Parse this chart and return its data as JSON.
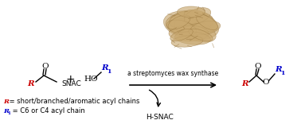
{
  "background_color": "#ffffff",
  "enzyme_label": "a streptomyces wax synthase",
  "byproduct_label": "H-SNAC",
  "R_label_color": "#cc0000",
  "R1_label_color": "#0000cc",
  "annotation_R": " = short/branched/aromatic acyl chains",
  "annotation_R1": " = C6 or C4 acyl chain",
  "figsize": [
    3.78,
    1.56
  ],
  "dpi": 100,
  "protein_color": "#c8a870",
  "protein_dark": "#9a7840",
  "black": "#000000"
}
